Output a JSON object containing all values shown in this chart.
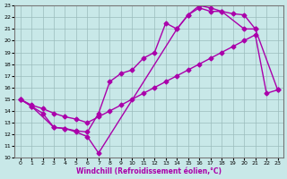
{
  "xlabel": "Windchill (Refroidissement éolien,°C)",
  "xlim": [
    -0.5,
    23.5
  ],
  "ylim": [
    10,
    23
  ],
  "xticks": [
    0,
    1,
    2,
    3,
    4,
    5,
    6,
    7,
    8,
    9,
    10,
    11,
    12,
    13,
    14,
    15,
    16,
    17,
    18,
    19,
    20,
    21,
    22,
    23
  ],
  "yticks": [
    10,
    11,
    12,
    13,
    14,
    15,
    16,
    17,
    18,
    19,
    20,
    21,
    22,
    23
  ],
  "bg_color": "#c8e8e8",
  "line_color": "#aa00aa",
  "line_width": 1.0,
  "marker": "D",
  "marker_size": 2.5,
  "s1_x": [
    0,
    1,
    2,
    3,
    4,
    5,
    6,
    7,
    14,
    15,
    16,
    17,
    18,
    20,
    21,
    23
  ],
  "s1_y": [
    15,
    14.4,
    13.8,
    12.6,
    12.5,
    12.2,
    11.8,
    10.4,
    21.0,
    22.2,
    23.0,
    22.8,
    22.5,
    21.0,
    21.0,
    15.8
  ],
  "s2_x": [
    0,
    1,
    3,
    4,
    5,
    6,
    7,
    8,
    9,
    10,
    11,
    12,
    13,
    14,
    15,
    16,
    17,
    18,
    19,
    20,
    21
  ],
  "s2_y": [
    15,
    14.4,
    12.6,
    12.5,
    12.3,
    12.2,
    13.8,
    16.5,
    17.2,
    17.5,
    18.5,
    19.0,
    21.5,
    21.0,
    22.2,
    22.8,
    22.5,
    22.5,
    22.3,
    22.2,
    21.0
  ],
  "s3_x": [
    0,
    1,
    2,
    3,
    4,
    5,
    6,
    7,
    8,
    9,
    10,
    11,
    12,
    13,
    14,
    15,
    16,
    17,
    18,
    19,
    20,
    21,
    22,
    23
  ],
  "s3_y": [
    15.0,
    14.5,
    14.2,
    13.8,
    13.5,
    13.3,
    13.0,
    13.5,
    14.0,
    14.5,
    15.0,
    15.5,
    16.0,
    16.5,
    17.0,
    17.5,
    18.0,
    18.5,
    19.0,
    19.5,
    20.0,
    20.5,
    15.5,
    15.8
  ]
}
